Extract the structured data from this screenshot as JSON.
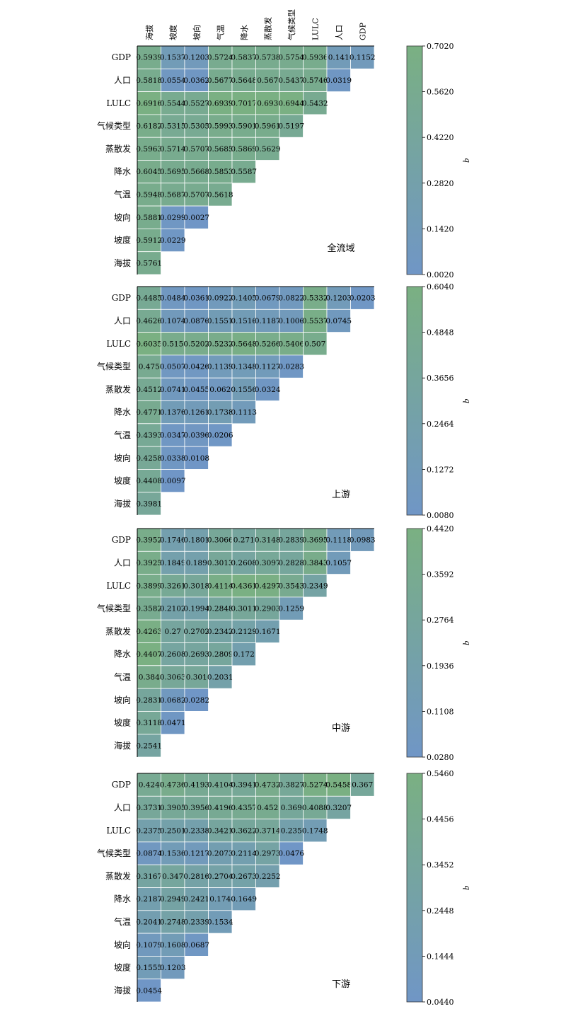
{
  "colorscale": {
    "low": "#7096c6",
    "high": "#7ab082"
  },
  "chart_data": [
    {
      "type": "heatmap",
      "title": "全流域",
      "x_categories": [
        "海拔",
        "坡度",
        "坡向",
        "气温",
        "降水",
        "蒸散发",
        "气候类型",
        "LULC",
        "人口",
        "GDP"
      ],
      "y_categories": [
        "GDP",
        "人口",
        "LULC",
        "气候类型",
        "蒸散发",
        "降水",
        "气温",
        "坡向",
        "坡度",
        "海拔"
      ],
      "values": [
        [
          "0.5939",
          "0.1537",
          "0.1203",
          "0.5724",
          "0.5837",
          "0.5738",
          "0.5754",
          "0.5936",
          "0.141",
          "0.1152"
        ],
        [
          "0.5818",
          "0.0554",
          "0.0362",
          "0.5677",
          "0.5648",
          "0.567",
          "0.5437",
          "0.5746",
          "0.0319"
        ],
        [
          "0.6916",
          "0.5544",
          "0.5527",
          "0.6939",
          "0.7017",
          "0.693",
          "0.6944",
          "0.5432"
        ],
        [
          "0.6182",
          "0.5315",
          "0.5305",
          "0.5993",
          "0.5901",
          "0.5961",
          "0.5197"
        ],
        [
          "0.5963",
          "0.5714",
          "0.5707",
          "0.5685",
          "0.5869",
          "0.5629"
        ],
        [
          "0.6045",
          "0.5695",
          "0.5668",
          "0.5853",
          "0.5587"
        ],
        [
          "0.5948",
          "0.5687",
          "0.5707",
          "0.5618"
        ],
        [
          "0.5881",
          "0.0299",
          "0.0027"
        ],
        [
          "0.5912",
          "0.0229"
        ],
        [
          "0.5761"
        ]
      ],
      "colorbar": {
        "label": "q",
        "min": 0.002,
        "max": 0.702,
        "ticks": [
          "0.0020",
          "0.1420",
          "0.2820",
          "0.4220",
          "0.5620",
          "0.7020"
        ]
      }
    },
    {
      "type": "heatmap",
      "title": "上游",
      "x_categories": [
        "海拔",
        "坡度",
        "坡向",
        "气温",
        "降水",
        "蒸散发",
        "气候类型",
        "LULC",
        "人口",
        "GDP"
      ],
      "y_categories": [
        "GDP",
        "人口",
        "LULC",
        "气候类型",
        "蒸散发",
        "降水",
        "气温",
        "坡向",
        "坡度",
        "海拔"
      ],
      "values": [
        [
          "0.4485",
          "0.0484",
          "0.0361",
          "0.0922",
          "0.1405",
          "0.0679",
          "0.0822",
          "0.5332",
          "0.1203",
          "0.0203"
        ],
        [
          "0.4626",
          "0.1074",
          "0.0876",
          "0.1551",
          "0.1516",
          "0.1187",
          "0.1006",
          "0.5537",
          "0.0745"
        ],
        [
          "0.6035",
          "0.515",
          "0.5202",
          "0.5232",
          "0.5648",
          "0.5266",
          "0.5406",
          "0.507"
        ],
        [
          "0.475",
          "0.0507",
          "0.0426",
          "0.1139",
          "0.1348",
          "0.1127",
          "0.0283"
        ],
        [
          "0.4512",
          "0.0741",
          "0.0455",
          "0.062",
          "0.1556",
          "0.0324"
        ],
        [
          "0.4771",
          "0.1376",
          "0.1261",
          "0.1738",
          "0.1113"
        ],
        [
          "0.4393",
          "0.0347",
          "0.0396",
          "0.0206"
        ],
        [
          "0.4258",
          "0.0338",
          "0.0108"
        ],
        [
          "0.4408",
          "0.0097"
        ],
        [
          "0.3981"
        ]
      ],
      "colorbar": {
        "label": "q",
        "min": 0.008,
        "max": 0.604,
        "ticks": [
          "0.0080",
          "0.1272",
          "0.2464",
          "0.3656",
          "0.4848",
          "0.6040"
        ]
      }
    },
    {
      "type": "heatmap",
      "title": "中游",
      "x_categories": [
        "海拔",
        "坡度",
        "坡向",
        "气温",
        "降水",
        "蒸散发",
        "气候类型",
        "LULC",
        "人口",
        "GDP"
      ],
      "y_categories": [
        "GDP",
        "人口",
        "LULC",
        "气候类型",
        "蒸散发",
        "降水",
        "气温",
        "坡向",
        "坡度",
        "海拔"
      ],
      "values": [
        [
          "0.3952",
          "0.1746",
          "0.1801",
          "0.3066",
          "0.271",
          "0.3148",
          "0.2839",
          "0.3695",
          "0.1118",
          "0.0983"
        ],
        [
          "0.3925",
          "0.1849",
          "0.189",
          "0.3013",
          "0.2608",
          "0.3097",
          "0.2828",
          "0.3843",
          "0.1057"
        ],
        [
          "0.3899",
          "0.3261",
          "0.3018",
          "0.4114",
          "0.4361",
          "0.4297",
          "0.3543",
          "0.2349"
        ],
        [
          "0.3582",
          "0.2102",
          "0.1994",
          "0.2848",
          "0.3011",
          "0.2903",
          "0.1259"
        ],
        [
          "0.4263",
          "0.27",
          "0.2702",
          "0.2342",
          "0.2129",
          "0.1671"
        ],
        [
          "0.4407",
          "0.2608",
          "0.2693",
          "0.2809",
          "0.172"
        ],
        [
          "0.384",
          "0.3063",
          "0.301",
          "0.2031"
        ],
        [
          "0.2831",
          "0.0682",
          "0.0282"
        ],
        [
          "0.3118",
          "0.0471"
        ],
        [
          "0.2541"
        ]
      ],
      "colorbar": {
        "label": "q",
        "min": 0.028,
        "max": 0.442,
        "ticks": [
          "0.0280",
          "0.1108",
          "0.1936",
          "0.2764",
          "0.3592",
          "0.4420"
        ]
      }
    },
    {
      "type": "heatmap",
      "title": "下游",
      "x_categories": [
        "海拔",
        "坡度",
        "坡向",
        "气温",
        "降水",
        "蒸散发",
        "气候类型",
        "LULC",
        "人口",
        "GDP"
      ],
      "y_categories": [
        "GDP",
        "人口",
        "LULC",
        "气候类型",
        "蒸散发",
        "降水",
        "气温",
        "坡向",
        "坡度",
        "海拔"
      ],
      "values": [
        [
          "0.424",
          "0.4736",
          "0.4193",
          "0.4104",
          "0.3941",
          "0.4732",
          "0.3827",
          "0.5274",
          "0.5458",
          "0.367"
        ],
        [
          "0.3731",
          "0.3905",
          "0.3956",
          "0.4196",
          "0.4357",
          "0.452",
          "0.369",
          "0.4088",
          "0.3207"
        ],
        [
          "0.2375",
          "0.2501",
          "0.2338",
          "0.3421",
          "0.3622",
          "0.3714",
          "0.235",
          "0.1748"
        ],
        [
          "0.0874",
          "0.1536",
          "0.1217",
          "0.2073",
          "0.2114",
          "0.2973",
          "0.0476"
        ],
        [
          "0.3167",
          "0.347",
          "0.2816",
          "0.2704",
          "0.2673",
          "0.2252"
        ],
        [
          "0.2187",
          "0.2949",
          "0.2421",
          "0.174",
          "0.1649"
        ],
        [
          "0.2041",
          "0.2748",
          "0.2339",
          "0.1534"
        ],
        [
          "0.1079",
          "0.1608",
          "0.0687"
        ],
        [
          "0.1555",
          "0.1203"
        ],
        [
          "0.0454"
        ]
      ],
      "colorbar": {
        "label": "q",
        "min": 0.044,
        "max": 0.546,
        "ticks": [
          "0.0440",
          "0.1444",
          "0.2448",
          "0.3452",
          "0.4456",
          "0.5460"
        ]
      }
    }
  ]
}
